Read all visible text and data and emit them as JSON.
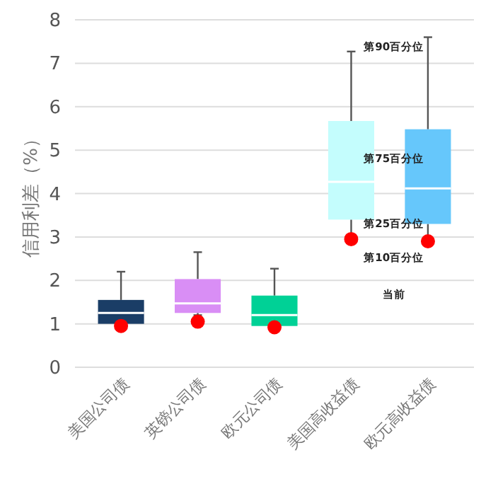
{
  "chart_data": {
    "type": "box",
    "ylabel": "信用利差（%）",
    "categories": [
      "美国公司债",
      "英镑公司债",
      "欧元公司债",
      "美国高收益债",
      "欧元高收益债"
    ],
    "ylim": [
      0,
      8
    ],
    "yticks": [
      0,
      1,
      2,
      3,
      4,
      5,
      6,
      7,
      8
    ],
    "grid": "y",
    "colors": [
      "#1a3d66",
      "#d98ef5",
      "#00d196",
      "#c4fdfd",
      "#66c7fb"
    ],
    "boxes": [
      {
        "low": 0.9,
        "q1": 1.0,
        "median": 1.25,
        "q3": 1.55,
        "high": 2.2
      },
      {
        "low": 1.2,
        "q1": 1.25,
        "median": 1.47,
        "q3": 2.03,
        "high": 2.65
      },
      {
        "low": 0.93,
        "q1": 0.95,
        "median": 1.2,
        "q3": 1.65,
        "high": 2.27
      },
      {
        "low": 3.0,
        "q1": 3.4,
        "median": 4.27,
        "q3": 5.67,
        "high": 7.27
      },
      {
        "low": 3.0,
        "q1": 3.3,
        "median": 4.12,
        "q3": 5.48,
        "high": 7.6
      }
    ],
    "series": [
      {
        "type": "scatter",
        "color": "#ff0000",
        "marker": "circle",
        "x": [
          "美国公司债",
          "英镑公司债",
          "欧元公司债",
          "美国高收益债",
          "欧元高收益债"
        ],
        "values": [
          0.95,
          1.05,
          0.92,
          2.95,
          2.9
        ]
      }
    ],
    "annotations": [
      "第90百分位",
      "第75百分位",
      "第25百分位",
      "第10百分位",
      "当前"
    ]
  }
}
